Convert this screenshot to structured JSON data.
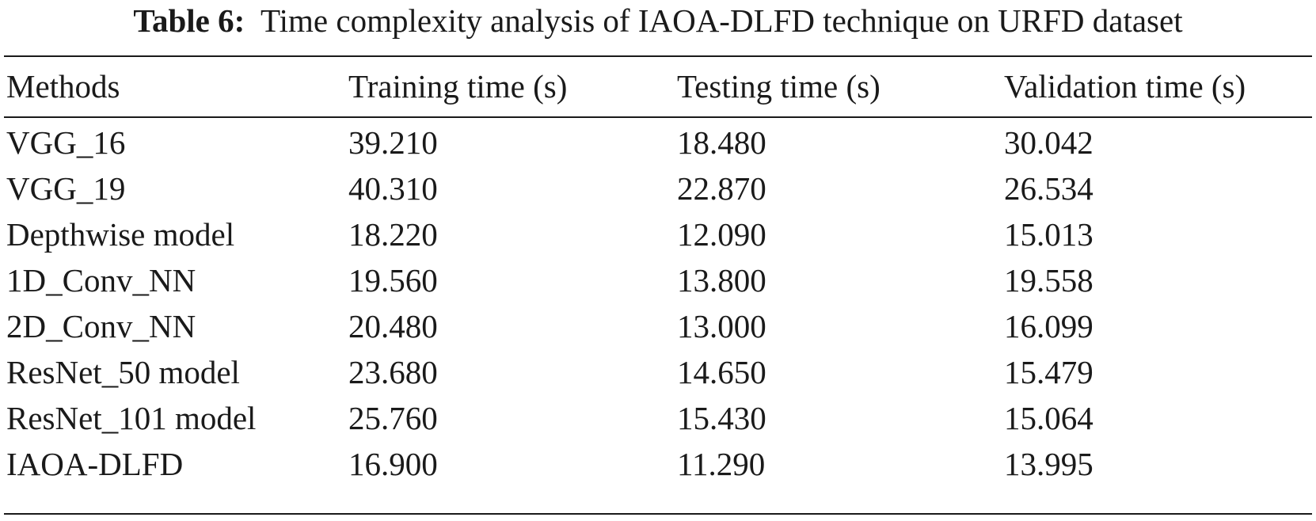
{
  "caption": {
    "label": "Table 6:",
    "text": "Time complexity analysis of IAOA-DLFD technique on URFD dataset"
  },
  "table": {
    "headers": [
      "Methods",
      "Training time (s)",
      "Testing time (s)",
      "Validation time (s)"
    ],
    "rows": [
      [
        "VGG_16",
        "39.210",
        "18.480",
        "30.042"
      ],
      [
        "VGG_19",
        "40.310",
        "22.870",
        "26.534"
      ],
      [
        "Depthwise model",
        "18.220",
        "12.090",
        "15.013"
      ],
      [
        "1D_Conv_NN",
        "19.560",
        "13.800",
        "19.558"
      ],
      [
        "2D_Conv_NN",
        "20.480",
        "13.000",
        "16.099"
      ],
      [
        "ResNet_50 model",
        "23.680",
        "14.650",
        "15.479"
      ],
      [
        "ResNet_101 model",
        "25.760",
        "15.430",
        "15.064"
      ],
      [
        "IAOA-DLFD",
        "16.900",
        "11.290",
        "13.995"
      ]
    ]
  }
}
